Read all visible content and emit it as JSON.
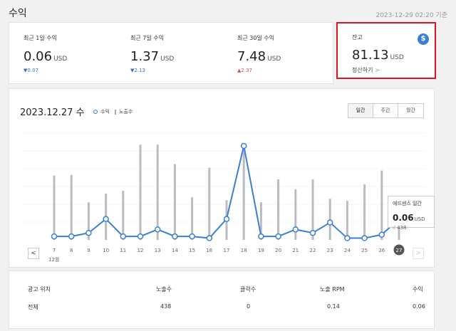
{
  "header": {
    "title": "수익",
    "timestamp": "2023-12-29 02:20 기준"
  },
  "stats": [
    {
      "label": "최근 1일 수익",
      "value": "0.06",
      "unit": "USD",
      "change": "0.07",
      "arrow": "▼",
      "direction": "down"
    },
    {
      "label": "최근 7일 수익",
      "value": "1.37",
      "unit": "USD",
      "change": "2.13",
      "arrow": "▼",
      "direction": "down"
    },
    {
      "label": "최근 30일 수익",
      "value": "7.48",
      "unit": "USD",
      "change": "2.37",
      "arrow": "▲",
      "direction": "up"
    }
  ],
  "balance": {
    "label": "잔고",
    "icon": "dollar-icon",
    "icon_glyph": "$",
    "value": "81.13",
    "unit": "USD",
    "link": "정산하기",
    "link_arrow": ">"
  },
  "chart_header": {
    "date": "2023.12.27 수",
    "legend_revenue": "수익",
    "legend_impressions": "노출수",
    "tabs": [
      {
        "label": "일간",
        "active": true
      },
      {
        "label": "주간",
        "active": false
      },
      {
        "label": "월간",
        "active": false
      }
    ],
    "prev": "<",
    "next": ">"
  },
  "colors": {
    "line": "#3b7fd4",
    "bar": "#b9bdc2",
    "highlight": "#e0141e",
    "selected_day_bg": "#555555"
  },
  "chart_data": {
    "type": "line",
    "x": [
      "7",
      "8",
      "9",
      "10",
      "11",
      "12",
      "13",
      "14",
      "15",
      "16",
      "17",
      "18",
      "19",
      "20",
      "21",
      "22",
      "23",
      "24",
      "25",
      "26",
      "27"
    ],
    "month_label": "12월",
    "series": [
      {
        "name": "수익",
        "values": [
          0.01,
          0.01,
          0.02,
          0.06,
          0.01,
          0.01,
          0.03,
          0.01,
          0.01,
          0.005,
          0.06,
          0.27,
          0.01,
          0.01,
          0.03,
          0.02,
          0.05,
          0.005,
          0.005,
          0.015,
          0.06
        ]
      },
      {
        "name": "노출수",
        "kind": "bar",
        "values": [
          890,
          900,
          520,
          640,
          680,
          1320,
          1320,
          1050,
          590,
          1000,
          550,
          1240,
          520,
          840,
          700,
          840,
          570,
          540,
          770,
          960,
          438
        ]
      }
    ],
    "selected_index": 20,
    "grid": true
  },
  "tooltip": {
    "title": "애드센스 일간",
    "value": "0.06",
    "unit": "USD",
    "impressions": "438"
  },
  "table": {
    "headers": [
      "광고 위치",
      "노출수",
      "클릭수",
      "노출 RPM",
      "수익"
    ],
    "rows": [
      [
        "전체",
        "438",
        "0",
        "0.14",
        "0.06"
      ]
    ]
  }
}
